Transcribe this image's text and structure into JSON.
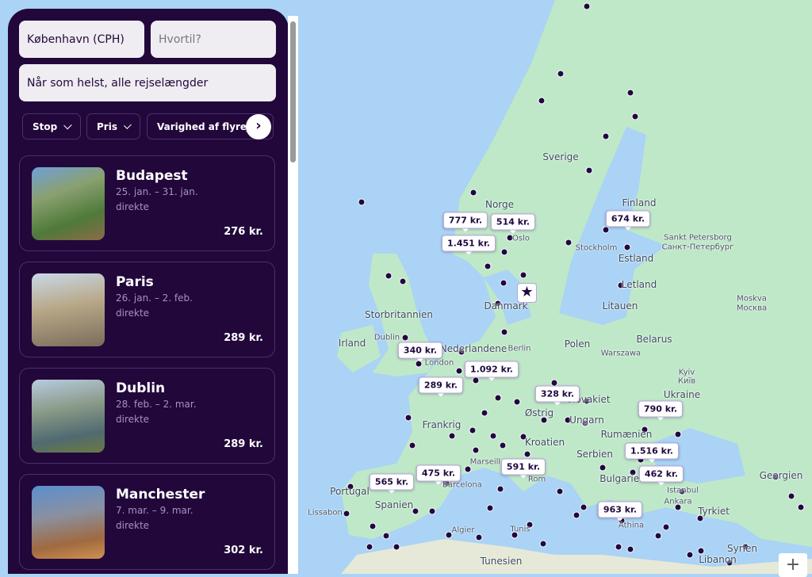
{
  "search": {
    "from": "København (CPH)",
    "to_placeholder": "Hvortil?",
    "when": "Når som helst, alle rejselængder"
  },
  "filters": [
    {
      "label": "Stop"
    },
    {
      "label": "Pris"
    },
    {
      "label": "Varighed af flyrejse"
    }
  ],
  "results": [
    {
      "city": "Budapest",
      "dates": "25. jan. – 31. jan.",
      "stops": "direkte",
      "price": "276 kr."
    },
    {
      "city": "Paris",
      "dates": "26. jan. – 2. feb.",
      "stops": "direkte",
      "price": "289 kr."
    },
    {
      "city": "Dublin",
      "dates": "28. feb. – 2. mar.",
      "stops": "direkte",
      "price": "289 kr."
    },
    {
      "city": "Manchester",
      "dates": "7. mar. – 9. mar.",
      "stops": "direkte",
      "price": "302 kr."
    }
  ],
  "map": {
    "prices": [
      "777 kr.",
      "514 kr.",
      "1.451 kr.",
      "674 kr.",
      "340 kr.",
      "1.092 kr.",
      "289 kr.",
      "328 kr.",
      "790 kr.",
      "1.516 kr.",
      "462 kr.",
      "591 kr.",
      "475 kr.",
      "565 kr.",
      "963 kr."
    ],
    "labels": [
      "Sverige",
      "Norge",
      "Finland",
      "Sankt Petersborg",
      "Санкт-Петербург",
      "Oslo",
      "Stockholm",
      "Estland",
      "Letland",
      "Danmark",
      "Litauen",
      "Storbritannien",
      "Moskva",
      "Москва",
      "Irland",
      "Dublin",
      "Nederlandene",
      "Berlin",
      "Polen",
      "Warszawa",
      "Belarus",
      "London",
      "Kyiv",
      "Київ",
      "Ukraine",
      "Slovakiet",
      "Frankrig",
      "Østrig",
      "Ungarn",
      "Kroatien",
      "Rumænien",
      "Serbien",
      "Marseille",
      "Portugal",
      "Bulgarien",
      "Barcelona",
      "Rom",
      "Istanbul",
      "Georgien",
      "Spanien",
      "Ankara",
      "Tyrkiet",
      "Lissabon",
      "Algier",
      "Tunis",
      "Athina",
      "Syrien",
      "Tunesien",
      "Libanon"
    ],
    "home_marker_icon": "star-icon",
    "zoom_in": "+"
  },
  "colors": {
    "panel": "#22073b",
    "sea": "#aad3f5",
    "land": "#bfe8c8",
    "accent": "#b9a3e0"
  }
}
